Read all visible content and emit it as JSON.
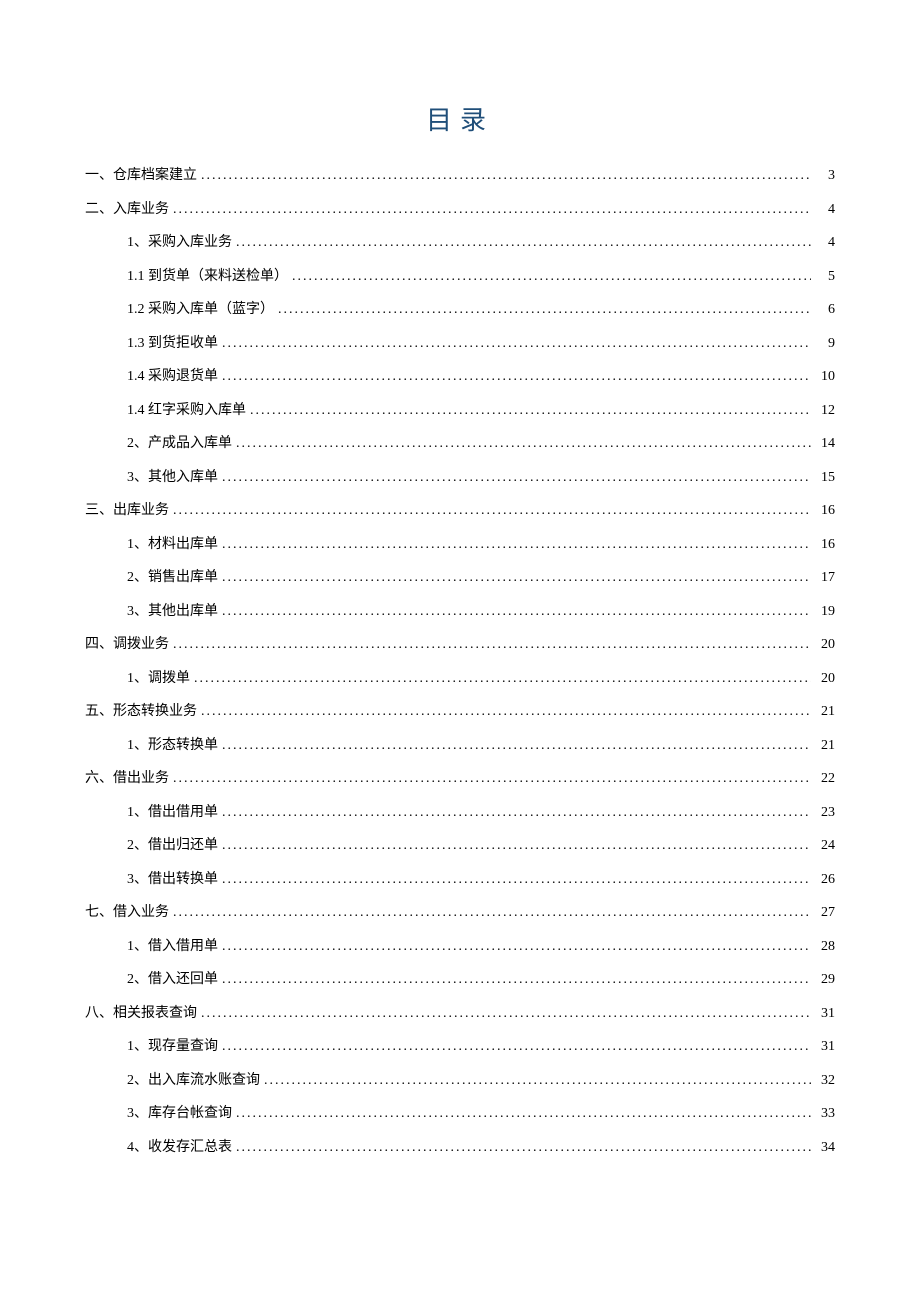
{
  "title": "目录",
  "title_color": "#1f4e79",
  "title_fontsize": 26,
  "text_color": "#000000",
  "entry_fontsize": 14,
  "background_color": "#ffffff",
  "entries": [
    {
      "level": 1,
      "label": "一、仓库档案建立",
      "page": "3"
    },
    {
      "level": 1,
      "label": "二、入库业务",
      "page": "4"
    },
    {
      "level": 2,
      "label": "1、采购入库业务",
      "page": "4"
    },
    {
      "level": 2,
      "label": "1.1 到货单（来料送检单）",
      "page": "5"
    },
    {
      "level": 2,
      "label": "1.2 采购入库单（蓝字）",
      "page": "6"
    },
    {
      "level": 2,
      "label": "1.3 到货拒收单",
      "page": "9"
    },
    {
      "level": 2,
      "label": "1.4 采购退货单",
      "page": "10"
    },
    {
      "level": 2,
      "label": "1.4 红字采购入库单",
      "page": "12"
    },
    {
      "level": 2,
      "label": "2、产成品入库单",
      "page": "14"
    },
    {
      "level": 2,
      "label": "3、其他入库单",
      "page": "15"
    },
    {
      "level": 1,
      "label": "三、出库业务",
      "page": "16"
    },
    {
      "level": 2,
      "label": "1、材料出库单",
      "page": "16"
    },
    {
      "level": 2,
      "label": "2、销售出库单",
      "page": "17"
    },
    {
      "level": 2,
      "label": "3、其他出库单",
      "page": "19"
    },
    {
      "level": 1,
      "label": "四、调拨业务",
      "page": "20"
    },
    {
      "level": 2,
      "label": "1、调拨单",
      "page": "20"
    },
    {
      "level": 1,
      "label": "五、形态转换业务",
      "page": "21"
    },
    {
      "level": 2,
      "label": "1、形态转换单",
      "page": "21"
    },
    {
      "level": 1,
      "label": "六、借出业务",
      "page": "22"
    },
    {
      "level": 2,
      "label": "1、借出借用单",
      "page": "23"
    },
    {
      "level": 2,
      "label": "2、借出归还单",
      "page": "24"
    },
    {
      "level": 2,
      "label": "3、借出转换单",
      "page": "26"
    },
    {
      "level": 1,
      "label": "七、借入业务",
      "page": "27"
    },
    {
      "level": 2,
      "label": "1、借入借用单",
      "page": "28"
    },
    {
      "level": 2,
      "label": "2、借入还回单",
      "page": "29"
    },
    {
      "level": 1,
      "label": "八、相关报表查询",
      "page": "31"
    },
    {
      "level": 2,
      "label": "1、现存量查询",
      "page": "31"
    },
    {
      "level": 2,
      "label": "2、出入库流水账查询",
      "page": "32"
    },
    {
      "level": 2,
      "label": "3、库存台帐查询",
      "page": "33"
    },
    {
      "level": 2,
      "label": "4、收发存汇总表",
      "page": "34"
    }
  ]
}
